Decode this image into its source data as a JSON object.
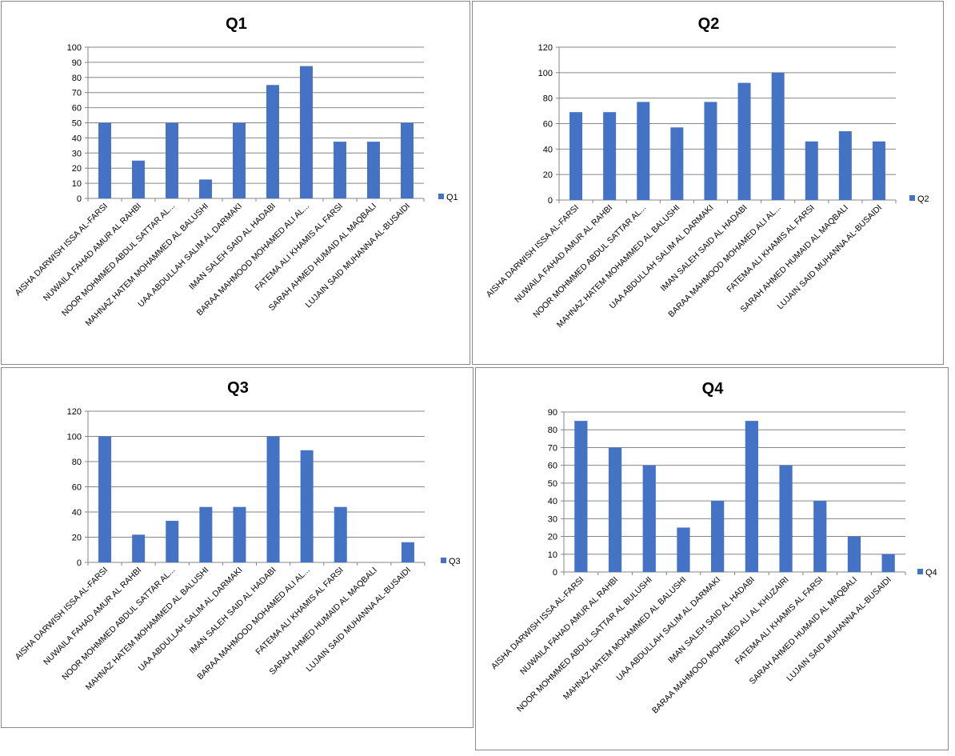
{
  "chart_data": [
    {
      "type": "bar",
      "title": "Q1",
      "categories": [
        "AISHA DARWISH ISSA AL-FARSI",
        "NUWAILA FAHAD AMUR AL RAHBI",
        "NOOR MOHMMED ABDUL SATTAR  AL...",
        "MAHNAZ HATEM MOHAMMED AL BALUSHI",
        "UAA ABDULLAH SALIM AL DARMAKI",
        "IMAN SALEH SAID AL HADABI",
        "BARAA MAHMOOD MOHAMED ALI AL...",
        "FATEMA ALI KHAMIS AL FARSI",
        "SARAH AHMED HUMAID AL MAQBALI",
        "LUJAIN SAID MUHANNA AL-BUSAIDI"
      ],
      "series": [
        {
          "name": "Q1",
          "values": [
            50,
            25,
            50,
            12.5,
            50,
            75,
            87.5,
            37.5,
            37.5,
            50
          ]
        }
      ],
      "ylim": [
        0,
        100
      ],
      "yticks": [
        0,
        10,
        20,
        30,
        40,
        50,
        60,
        70,
        80,
        90,
        100
      ],
      "grid": true,
      "legend": "right",
      "color": "#4472c4"
    },
    {
      "type": "bar",
      "title": "Q2",
      "categories": [
        "AISHA DARWISH ISSA AL-FARSI",
        "NUWAILA FAHAD AMUR AL RAHBI",
        "NOOR MOHMMED ABDUL SATTAR  AL...",
        "MAHNAZ HATEM MOHAMMED AL BALUSHI",
        "UAA ABDULLAH SALIM AL DARMAKI",
        "IMAN SALEH SAID AL HADABI",
        "BARAA MAHMOOD MOHAMED ALI AL...",
        "FATEMA ALI KHAMIS AL FARSI",
        "SARAH AHMED HUMAID AL MAQBALI",
        "LUJAIN SAID MUHANNA AL-BUSAIDI"
      ],
      "series": [
        {
          "name": "Q2",
          "values": [
            69,
            69,
            77,
            57,
            77,
            92,
            100,
            46,
            54,
            46
          ]
        }
      ],
      "ylim": [
        0,
        120
      ],
      "yticks": [
        0,
        20,
        40,
        60,
        80,
        100,
        120
      ],
      "grid": true,
      "legend": "right",
      "color": "#4472c4"
    },
    {
      "type": "bar",
      "title": "Q3",
      "categories": [
        "AISHA DARWISH ISSA AL-FARSI",
        "NUWAILA FAHAD AMUR AL RAHBI",
        "NOOR MOHMMED ABDUL SATTAR  AL...",
        "MAHNAZ HATEM MOHAMMED AL BALUSHI",
        "UAA ABDULLAH SALIM AL DARMAKI",
        "IMAN SALEH SAID AL HADABI",
        "BARAA MAHMOOD MOHAMED ALI AL...",
        "FATEMA ALI KHAMIS AL FARSI",
        "SARAH AHMED HUMAID AL MAQBALI",
        "LUJAIN SAID MUHANNA AL-BUSAIDI"
      ],
      "series": [
        {
          "name": "Q3",
          "values": [
            100,
            22,
            33,
            44,
            44,
            100,
            89,
            44,
            0,
            16
          ]
        }
      ],
      "ylim": [
        0,
        120
      ],
      "yticks": [
        0,
        20,
        40,
        60,
        80,
        100,
        120
      ],
      "grid": true,
      "legend": "right",
      "color": "#4472c4"
    },
    {
      "type": "bar",
      "title": "Q4",
      "categories": [
        "AISHA DARWISH ISSA AL-FARSI",
        "NUWAILA FAHAD AMUR AL RAHBI",
        "NOOR MOHMMED ABDUL SATTAR  AL BULUSHI",
        "MAHNAZ HATEM MOHAMMED AL BALUSHI",
        "UAA ABDULLAH SALIM AL DARMAKI",
        "IMAN SALEH SAID AL HADABI",
        "BARAA MAHMOOD MOHAMED ALI AL KHUZAIRI",
        "FATEMA ALI KHAMIS AL FARSI",
        "SARAH AHMED HUMAID AL MAQBALI",
        "LUJAIN SAID MUHANNA AL-BUSAIDI"
      ],
      "series": [
        {
          "name": "Q4",
          "values": [
            85,
            70,
            60,
            25,
            40,
            85,
            60,
            40,
            20,
            10
          ]
        }
      ],
      "ylim": [
        0,
        90
      ],
      "yticks": [
        0,
        10,
        20,
        30,
        40,
        50,
        60,
        70,
        80,
        90
      ],
      "grid": true,
      "legend": "right",
      "color": "#4472c4"
    }
  ]
}
